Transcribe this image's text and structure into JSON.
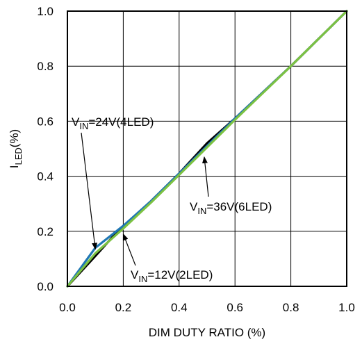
{
  "chart_data": {
    "type": "line",
    "title": "",
    "xlabel": "DIM DUTY RATIO (%)",
    "ylabel": {
      "main": "I",
      "sub": "LED",
      "suffix": "(%)"
    },
    "xlim": [
      0,
      1
    ],
    "ylim": [
      0,
      1
    ],
    "x_ticks": [
      "0.0",
      "0.2",
      "0.4",
      "0.6",
      "0.8",
      "1.0"
    ],
    "y_ticks": [
      "0.0",
      "0.2",
      "0.4",
      "0.6",
      "0.8",
      "1.0"
    ],
    "grid": true,
    "legend": "none",
    "series": [
      {
        "color": "#000000",
        "x": [
          0.0,
          0.1,
          0.18,
          0.3,
          0.4,
          0.5,
          0.6,
          0.8,
          1.0
        ],
        "y": [
          0.0,
          0.11,
          0.2,
          0.31,
          0.41,
          0.52,
          0.61,
          0.8,
          1.0
        ]
      },
      {
        "color": "#1f77b4",
        "x": [
          0.0,
          0.1,
          0.2,
          0.3,
          0.4,
          0.5,
          0.6,
          0.8,
          1.0
        ],
        "y": [
          0.0,
          0.14,
          0.22,
          0.31,
          0.41,
          0.51,
          0.61,
          0.8,
          1.0
        ]
      },
      {
        "color": "#7cc242",
        "x": [
          0.0,
          0.1,
          0.2,
          0.3,
          0.4,
          0.5,
          0.6,
          0.8,
          1.0
        ],
        "y": [
          0.0,
          0.12,
          0.21,
          0.305,
          0.405,
          0.505,
          0.605,
          0.8,
          1.0
        ]
      }
    ],
    "annotations": [
      {
        "pre": "V",
        "sub": "IN",
        "post": "=24V(4LED)",
        "target": [
          0.1,
          0.135
        ],
        "color": "#000000"
      },
      {
        "pre": "V",
        "sub": "IN",
        "post": "=36V(6LED)",
        "target": [
          0.49,
          0.47
        ],
        "color": "#000000"
      },
      {
        "pre": "V",
        "sub": "IN",
        "post": "=12V(2LED)",
        "target": [
          0.2,
          0.19
        ],
        "color": "#000000"
      }
    ],
    "colors": {
      "grid": "#000000",
      "frame": "#000000"
    }
  }
}
